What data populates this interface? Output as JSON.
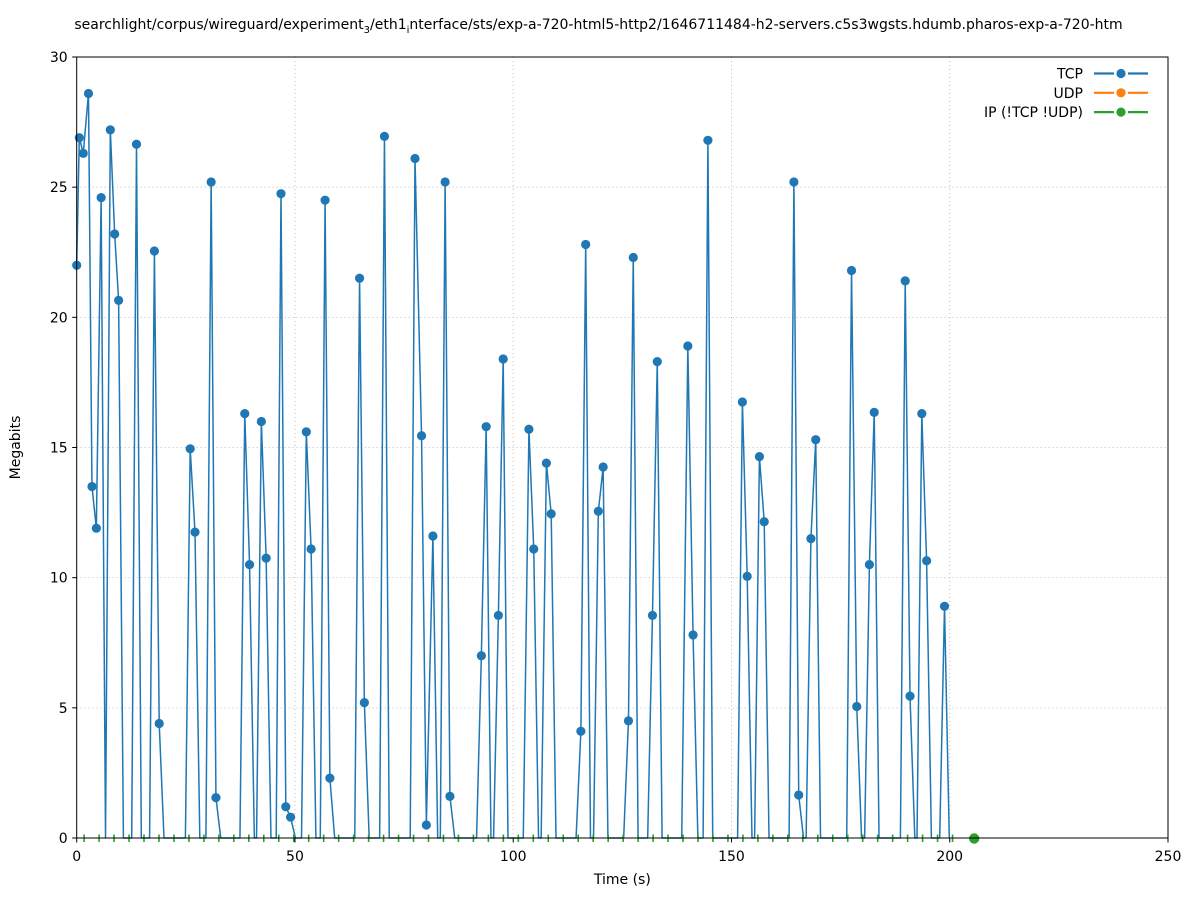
{
  "title": {
    "part1": "searchlight/corpus/wireguard/experiment",
    "sub1": "3",
    "part2": "/eth1",
    "sub2": "i",
    "part3": "nterface/sts/exp-a-720-html5-http2/1646711484-h2-servers.c5s3wgsts.hdumb.pharos-exp-a-720-htm"
  },
  "axes": {
    "x": {
      "label": "Time (s)",
      "min": 0,
      "max": 250,
      "ticks": [
        "0",
        "50",
        "100",
        "150",
        "200",
        "250"
      ],
      "tick_values": [
        0,
        50,
        100,
        150,
        200,
        250
      ]
    },
    "y": {
      "label": "Megabits",
      "min": 0,
      "max": 30,
      "ticks": [
        "0",
        "5",
        "10",
        "15",
        "20",
        "25",
        "30"
      ],
      "tick_values": [
        0,
        5,
        10,
        15,
        20,
        25,
        30
      ]
    },
    "grid": "dotted"
  },
  "legend": {
    "position": "top-right",
    "frame": false,
    "entries": [
      {
        "label": "TCP",
        "color": "#1f77b4"
      },
      {
        "label": "UDP",
        "color": "#ff7f0e"
      },
      {
        "label": "IP (!TCP  !UDP)",
        "color": "#2ca02c"
      }
    ]
  },
  "colors": {
    "tcp": "#1f77b4",
    "udp": "#ff7f0e",
    "ip_other": "#2ca02c",
    "grid": "#bbbbbb",
    "border": "#000000",
    "background": "#ffffff"
  },
  "chart_data": {
    "type": "line",
    "title": "searchlight/corpus/wireguard/experiment_3/eth1_interface/sts/exp-a-720-html5-http2/1646711484-h2-servers.c5s3wgsts.hdumb.pharos-exp-a-720-htm",
    "xlabel": "Time (s)",
    "ylabel": "Megabits",
    "xlim": [
      0,
      250
    ],
    "ylim": [
      0,
      30
    ],
    "grid": true,
    "legend_position": "upper right",
    "series": [
      {
        "name": "TCP",
        "color": "#1f77b4",
        "style": "line-with-circle-markers",
        "points": [
          [
            0,
            22.0
          ],
          [
            0.6,
            26.9
          ],
          [
            1.5,
            26.3
          ],
          [
            2.7,
            28.6
          ],
          [
            3.5,
            13.5
          ],
          [
            4.5,
            11.9
          ],
          [
            5.6,
            24.6
          ],
          [
            6.6,
            0
          ],
          [
            7.7,
            27.2
          ],
          [
            8.7,
            23.2
          ],
          [
            9.6,
            20.65
          ],
          [
            10.7,
            0
          ],
          [
            12.6,
            0
          ],
          [
            13.7,
            26.65
          ],
          [
            14.8,
            0
          ],
          [
            16.7,
            0
          ],
          [
            17.8,
            22.55
          ],
          [
            18.9,
            4.4
          ],
          [
            20.0,
            0
          ],
          [
            24.9,
            0
          ],
          [
            26.0,
            14.95
          ],
          [
            27.1,
            11.75
          ],
          [
            28.2,
            0
          ],
          [
            29.6,
            0
          ],
          [
            30.8,
            25.2
          ],
          [
            31.9,
            1.55
          ],
          [
            33.0,
            0
          ],
          [
            37.4,
            0
          ],
          [
            38.5,
            16.3
          ],
          [
            39.6,
            10.5
          ],
          [
            40.7,
            0
          ],
          [
            41.2,
            0
          ],
          [
            42.3,
            16.0
          ],
          [
            43.4,
            10.75
          ],
          [
            44.5,
            0
          ],
          [
            45.7,
            0
          ],
          [
            46.8,
            24.75
          ],
          [
            47.9,
            1.2
          ],
          [
            49.0,
            0.8
          ],
          [
            50.1,
            0
          ],
          [
            51.5,
            0
          ],
          [
            52.6,
            15.6
          ],
          [
            53.7,
            11.1
          ],
          [
            54.8,
            0
          ],
          [
            55.8,
            0
          ],
          [
            56.9,
            24.5
          ],
          [
            58.0,
            2.3
          ],
          [
            59.1,
            0
          ],
          [
            63.7,
            0
          ],
          [
            64.8,
            21.5
          ],
          [
            65.9,
            5.2
          ],
          [
            67.0,
            0
          ],
          [
            69.4,
            0
          ],
          [
            70.5,
            26.95
          ],
          [
            71.6,
            0
          ],
          [
            76.4,
            0
          ],
          [
            77.5,
            26.1
          ],
          [
            79.0,
            15.45
          ],
          [
            80.1,
            0.5
          ],
          [
            81.6,
            11.6
          ],
          [
            82.7,
            0
          ],
          [
            83.3,
            0
          ],
          [
            84.4,
            25.2
          ],
          [
            85.5,
            1.6
          ],
          [
            86.6,
            0
          ],
          [
            91.6,
            0
          ],
          [
            92.7,
            7.0
          ],
          [
            93.8,
            15.8
          ],
          [
            94.9,
            0
          ],
          [
            95.5,
            0
          ],
          [
            96.6,
            8.55
          ],
          [
            97.7,
            18.4
          ],
          [
            98.8,
            0
          ],
          [
            102.3,
            0
          ],
          [
            103.6,
            15.7
          ],
          [
            104.7,
            11.1
          ],
          [
            105.8,
            0
          ],
          [
            106.4,
            0
          ],
          [
            107.6,
            14.4
          ],
          [
            108.7,
            12.45
          ],
          [
            109.8,
            0
          ],
          [
            114.4,
            0
          ],
          [
            115.5,
            4.1
          ],
          [
            116.6,
            22.8
          ],
          [
            117.7,
            0
          ],
          [
            118.4,
            0
          ],
          [
            119.5,
            12.55
          ],
          [
            120.6,
            14.25
          ],
          [
            121.7,
            0
          ],
          [
            125.3,
            0
          ],
          [
            126.4,
            4.5
          ],
          [
            127.5,
            22.3
          ],
          [
            128.6,
            0
          ],
          [
            130.8,
            0
          ],
          [
            131.9,
            8.55
          ],
          [
            133.0,
            18.3
          ],
          [
            134.1,
            0
          ],
          [
            138.6,
            0
          ],
          [
            140.0,
            18.9
          ],
          [
            141.2,
            7.8
          ],
          [
            142.3,
            0
          ],
          [
            143.5,
            0
          ],
          [
            144.6,
            26.8
          ],
          [
            145.7,
            0
          ],
          [
            151.4,
            0
          ],
          [
            152.5,
            16.75
          ],
          [
            153.6,
            10.05
          ],
          [
            154.7,
            0
          ],
          [
            155.3,
            0
          ],
          [
            156.4,
            14.65
          ],
          [
            157.5,
            12.15
          ],
          [
            158.6,
            0
          ],
          [
            163.2,
            0
          ],
          [
            164.3,
            25.2
          ],
          [
            165.4,
            1.65
          ],
          [
            166.5,
            0
          ],
          [
            167.1,
            0
          ],
          [
            168.2,
            11.5
          ],
          [
            169.3,
            15.3
          ],
          [
            170.4,
            0
          ],
          [
            176.4,
            0
          ],
          [
            177.5,
            21.8
          ],
          [
            178.7,
            5.05
          ],
          [
            179.8,
            0
          ],
          [
            180.5,
            0
          ],
          [
            181.6,
            10.5
          ],
          [
            182.7,
            16.35
          ],
          [
            183.8,
            0
          ],
          [
            188.7,
            0
          ],
          [
            189.8,
            21.4
          ],
          [
            190.9,
            5.45
          ],
          [
            192.0,
            0
          ],
          [
            192.5,
            0
          ],
          [
            193.6,
            16.3
          ],
          [
            194.7,
            10.65
          ],
          [
            195.8,
            0
          ],
          [
            197.7,
            0
          ],
          [
            198.8,
            8.9
          ],
          [
            199.9,
            0
          ]
        ]
      },
      {
        "name": "UDP",
        "color": "#ff7f0e",
        "style": "line-with-circle-markers",
        "points": [],
        "note": "no visible data points; series at ~0 hidden behind IP series and x-axis"
      },
      {
        "name": "IP (!TCP  !UDP)",
        "color": "#2ca02c",
        "style": "near-zero ticks along x-axis",
        "axis_ticks": {
          "t_start": 1.7,
          "t_step": 3.43,
          "count": 59,
          "value": 0
        },
        "end_dot": [
          205.6,
          0
        ]
      }
    ]
  }
}
